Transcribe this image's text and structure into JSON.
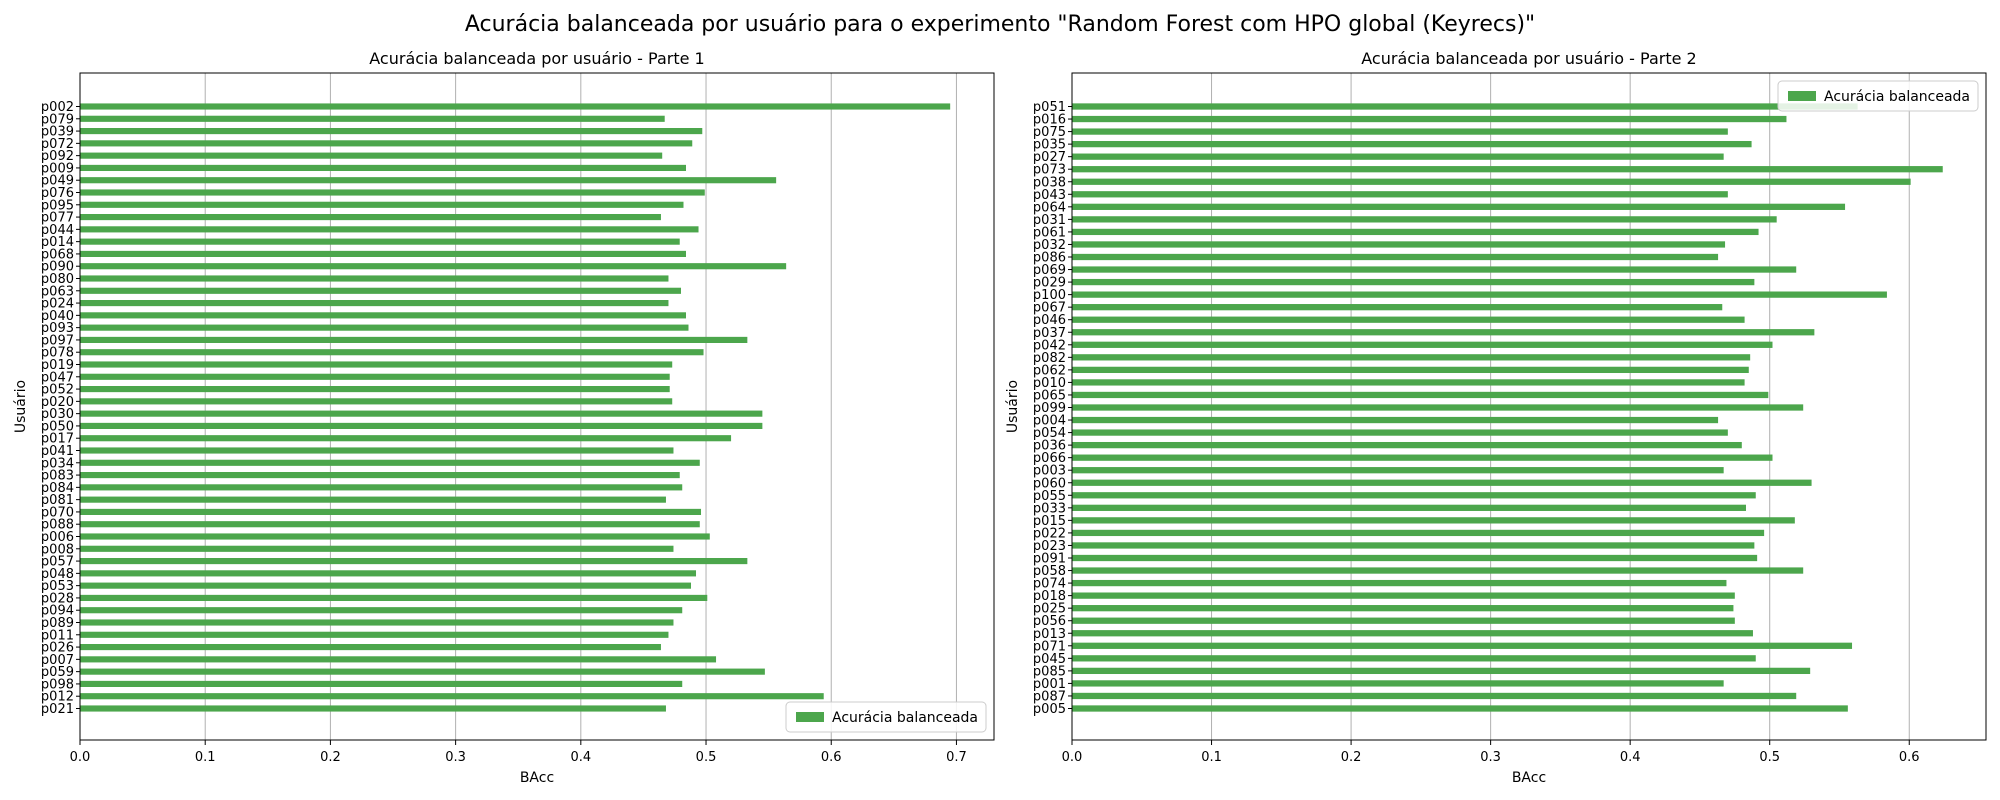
{
  "suptitle": "Acurácia balanceada por usuário para o experimento \"Random Forest com HPO global (Keyrecs)\"",
  "colors": {
    "bar": "#4ca64c",
    "grid": "#b0b0b0"
  },
  "chart_data": [
    {
      "type": "bar",
      "orientation": "horizontal",
      "title": "Acurácia balanceada por usuário - Parte 1",
      "xlabel": "BAcc",
      "ylabel": "Usuário",
      "xlim": [
        0,
        0.73
      ],
      "xticks": [
        0.0,
        0.1,
        0.2,
        0.3,
        0.4,
        0.5,
        0.6,
        0.7
      ],
      "xtick_labels": [
        "0.0",
        "0.1",
        "0.2",
        "0.3",
        "0.4",
        "0.5",
        "0.6",
        "0.7"
      ],
      "grid": "x",
      "legend": {
        "entries": [
          "Acurácia balanceada"
        ],
        "placement": "lower-right"
      },
      "series": [
        {
          "name": "Acurácia balanceada"
        }
      ],
      "categories": [
        "p002",
        "p079",
        "p039",
        "p072",
        "p092",
        "p009",
        "p049",
        "p076",
        "p095",
        "p077",
        "p044",
        "p014",
        "p068",
        "p090",
        "p080",
        "p063",
        "p024",
        "p040",
        "p093",
        "p097",
        "p078",
        "p019",
        "p047",
        "p052",
        "p020",
        "p030",
        "p050",
        "p017",
        "p041",
        "p034",
        "p083",
        "p084",
        "p081",
        "p070",
        "p088",
        "p006",
        "p008",
        "p057",
        "p048",
        "p053",
        "p028",
        "p094",
        "p089",
        "p011",
        "p026",
        "p007",
        "p059",
        "p098",
        "p012",
        "p021"
      ],
      "values": [
        0.695,
        0.467,
        0.497,
        0.489,
        0.465,
        0.484,
        0.556,
        0.499,
        0.482,
        0.464,
        0.494,
        0.479,
        0.484,
        0.564,
        0.47,
        0.48,
        0.47,
        0.484,
        0.486,
        0.533,
        0.498,
        0.473,
        0.471,
        0.471,
        0.473,
        0.545,
        0.545,
        0.52,
        0.474,
        0.495,
        0.479,
        0.481,
        0.468,
        0.496,
        0.495,
        0.503,
        0.474,
        0.533,
        0.492,
        0.488,
        0.501,
        0.481,
        0.474,
        0.47,
        0.464,
        0.508,
        0.547,
        0.481,
        0.594,
        0.468
      ]
    },
    {
      "type": "bar",
      "orientation": "horizontal",
      "title": "Acurácia balanceada por usuário - Parte 2",
      "xlabel": "BAcc",
      "ylabel": "Usuário",
      "xlim": [
        0,
        0.655
      ],
      "xticks": [
        0.0,
        0.1,
        0.2,
        0.3,
        0.4,
        0.5,
        0.6
      ],
      "xtick_labels": [
        "0.0",
        "0.1",
        "0.2",
        "0.3",
        "0.4",
        "0.5",
        "0.6"
      ],
      "grid": "x",
      "legend": {
        "entries": [
          "Acurácia balanceada"
        ],
        "placement": "upper-right"
      },
      "series": [
        {
          "name": "Acurácia balanceada"
        }
      ],
      "categories": [
        "p051",
        "p016",
        "p075",
        "p035",
        "p027",
        "p073",
        "p038",
        "p043",
        "p064",
        "p031",
        "p061",
        "p032",
        "p086",
        "p069",
        "p029",
        "p100",
        "p067",
        "p046",
        "p037",
        "p042",
        "p082",
        "p062",
        "p010",
        "p065",
        "p099",
        "p004",
        "p054",
        "p036",
        "p066",
        "p003",
        "p060",
        "p055",
        "p033",
        "p015",
        "p022",
        "p023",
        "p091",
        "p058",
        "p074",
        "p018",
        "p025",
        "p056",
        "p013",
        "p071",
        "p045",
        "p085",
        "p001",
        "p087",
        "p005"
      ],
      "values": [
        0.563,
        0.512,
        0.47,
        0.487,
        0.467,
        0.624,
        0.601,
        0.47,
        0.554,
        0.505,
        0.492,
        0.468,
        0.463,
        0.519,
        0.489,
        0.584,
        0.466,
        0.482,
        0.532,
        0.502,
        0.486,
        0.485,
        0.482,
        0.499,
        0.524,
        0.463,
        0.47,
        0.48,
        0.502,
        0.467,
        0.53,
        0.49,
        0.483,
        0.518,
        0.496,
        0.489,
        0.491,
        0.524,
        0.469,
        0.475,
        0.474,
        0.475,
        0.488,
        0.559,
        0.49,
        0.529,
        0.467,
        0.519,
        0.556
      ]
    }
  ]
}
